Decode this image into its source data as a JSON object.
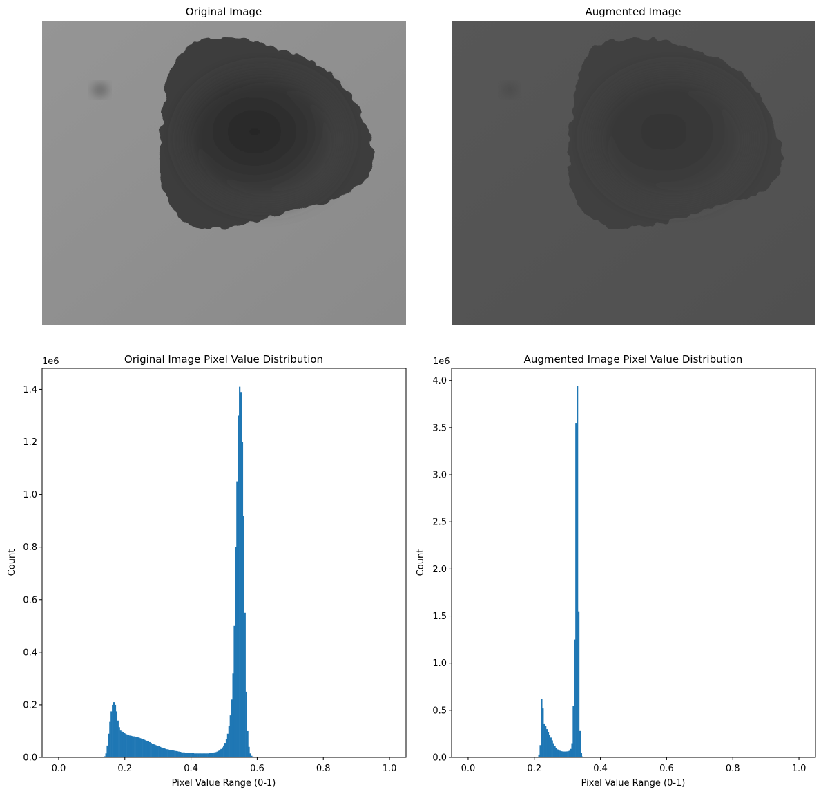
{
  "images": [
    {
      "title": "Original Image",
      "tone": "original",
      "background": "#8f8f8f"
    },
    {
      "title": "Augmented Image",
      "tone": "augmented",
      "background": "#545454"
    }
  ],
  "chart_data": [
    {
      "type": "bar",
      "title": "Original Image Pixel Value Distribution",
      "xlabel": "Pixel Value Range (0-1)",
      "ylabel": "Count",
      "scale_label": "1e6",
      "xlim": [
        -0.05,
        1.05
      ],
      "ylim": [
        0,
        1.48
      ],
      "xticks": [
        "0.0",
        "0.2",
        "0.4",
        "0.6",
        "0.8",
        "1.0"
      ],
      "xtick_values": [
        0,
        0.2,
        0.4,
        0.6,
        0.8,
        1.0
      ],
      "yticks": [
        "0.0",
        "0.2",
        "0.4",
        "0.6",
        "0.8",
        "1.0",
        "1.2",
        "1.4"
      ],
      "ytick_values": [
        0,
        0.2,
        0.4,
        0.6,
        0.8,
        1.0,
        1.2,
        1.4
      ],
      "color": "#1f77b4",
      "bin_width": 0.00392,
      "bins": [
        [
          0.137,
          0.004
        ],
        [
          0.141,
          0.015
        ],
        [
          0.145,
          0.045
        ],
        [
          0.149,
          0.09
        ],
        [
          0.153,
          0.135
        ],
        [
          0.157,
          0.175
        ],
        [
          0.161,
          0.2
        ],
        [
          0.165,
          0.21
        ],
        [
          0.169,
          0.2
        ],
        [
          0.173,
          0.175
        ],
        [
          0.177,
          0.14
        ],
        [
          0.181,
          0.115
        ],
        [
          0.185,
          0.102
        ],
        [
          0.189,
          0.098
        ],
        [
          0.193,
          0.095
        ],
        [
          0.197,
          0.092
        ],
        [
          0.201,
          0.089
        ],
        [
          0.205,
          0.087
        ],
        [
          0.209,
          0.085
        ],
        [
          0.213,
          0.083
        ],
        [
          0.217,
          0.082
        ],
        [
          0.221,
          0.081
        ],
        [
          0.225,
          0.08
        ],
        [
          0.229,
          0.079
        ],
        [
          0.233,
          0.078
        ],
        [
          0.237,
          0.077
        ],
        [
          0.241,
          0.075
        ],
        [
          0.245,
          0.073
        ],
        [
          0.249,
          0.071
        ],
        [
          0.253,
          0.069
        ],
        [
          0.257,
          0.067
        ],
        [
          0.261,
          0.065
        ],
        [
          0.265,
          0.063
        ],
        [
          0.269,
          0.061
        ],
        [
          0.273,
          0.058
        ],
        [
          0.277,
          0.055
        ],
        [
          0.281,
          0.052
        ],
        [
          0.285,
          0.05
        ],
        [
          0.289,
          0.048
        ],
        [
          0.293,
          0.046
        ],
        [
          0.297,
          0.044
        ],
        [
          0.301,
          0.042
        ],
        [
          0.305,
          0.04
        ],
        [
          0.309,
          0.038
        ],
        [
          0.313,
          0.036
        ],
        [
          0.317,
          0.034
        ],
        [
          0.321,
          0.033
        ],
        [
          0.325,
          0.031
        ],
        [
          0.329,
          0.03
        ],
        [
          0.333,
          0.029
        ],
        [
          0.337,
          0.028
        ],
        [
          0.341,
          0.027
        ],
        [
          0.345,
          0.026
        ],
        [
          0.349,
          0.025
        ],
        [
          0.353,
          0.024
        ],
        [
          0.357,
          0.023
        ],
        [
          0.361,
          0.022
        ],
        [
          0.365,
          0.021
        ],
        [
          0.369,
          0.02
        ],
        [
          0.373,
          0.019
        ],
        [
          0.377,
          0.019
        ],
        [
          0.381,
          0.018
        ],
        [
          0.385,
          0.018
        ],
        [
          0.389,
          0.017
        ],
        [
          0.393,
          0.017
        ],
        [
          0.397,
          0.016
        ],
        [
          0.401,
          0.016
        ],
        [
          0.405,
          0.016
        ],
        [
          0.409,
          0.015
        ],
        [
          0.413,
          0.015
        ],
        [
          0.417,
          0.015
        ],
        [
          0.421,
          0.015
        ],
        [
          0.425,
          0.015
        ],
        [
          0.429,
          0.015
        ],
        [
          0.433,
          0.015
        ],
        [
          0.437,
          0.015
        ],
        [
          0.441,
          0.015
        ],
        [
          0.445,
          0.015
        ],
        [
          0.449,
          0.015
        ],
        [
          0.453,
          0.016
        ],
        [
          0.457,
          0.016
        ],
        [
          0.461,
          0.017
        ],
        [
          0.465,
          0.018
        ],
        [
          0.469,
          0.019
        ],
        [
          0.473,
          0.02
        ],
        [
          0.477,
          0.022
        ],
        [
          0.481,
          0.025
        ],
        [
          0.485,
          0.028
        ],
        [
          0.489,
          0.032
        ],
        [
          0.493,
          0.038
        ],
        [
          0.497,
          0.045
        ],
        [
          0.501,
          0.055
        ],
        [
          0.505,
          0.07
        ],
        [
          0.509,
          0.09
        ],
        [
          0.513,
          0.12
        ],
        [
          0.517,
          0.16
        ],
        [
          0.521,
          0.22
        ],
        [
          0.525,
          0.32
        ],
        [
          0.529,
          0.5
        ],
        [
          0.533,
          0.8
        ],
        [
          0.537,
          1.05
        ],
        [
          0.541,
          1.3
        ],
        [
          0.545,
          1.41
        ],
        [
          0.549,
          1.39
        ],
        [
          0.553,
          1.2
        ],
        [
          0.557,
          0.92
        ],
        [
          0.561,
          0.55
        ],
        [
          0.565,
          0.25
        ],
        [
          0.569,
          0.1
        ],
        [
          0.573,
          0.04
        ],
        [
          0.577,
          0.015
        ],
        [
          0.581,
          0.006
        ],
        [
          0.585,
          0.003
        ]
      ]
    },
    {
      "type": "bar",
      "title": "Augmented Image Pixel Value Distribution",
      "xlabel": "Pixel Value Range (0-1)",
      "ylabel": "Count",
      "scale_label": "1e6",
      "xlim": [
        -0.05,
        1.05
      ],
      "ylim": [
        0,
        4.13
      ],
      "xticks": [
        "0.0",
        "0.2",
        "0.4",
        "0.6",
        "0.8",
        "1.0"
      ],
      "xtick_values": [
        0,
        0.2,
        0.4,
        0.6,
        0.8,
        1.0
      ],
      "yticks": [
        "0.0",
        "0.5",
        "1.0",
        "1.5",
        "2.0",
        "2.5",
        "3.0",
        "3.5",
        "4.0"
      ],
      "ytick_values": [
        0,
        0.5,
        1.0,
        1.5,
        2.0,
        2.5,
        3.0,
        3.5,
        4.0
      ],
      "color": "#1f77b4",
      "bin_width": 0.00392,
      "bins": [
        [
          0.212,
          0.03
        ],
        [
          0.216,
          0.13
        ],
        [
          0.22,
          0.62
        ],
        [
          0.224,
          0.52
        ],
        [
          0.228,
          0.36
        ],
        [
          0.232,
          0.33
        ],
        [
          0.236,
          0.3
        ],
        [
          0.24,
          0.27
        ],
        [
          0.244,
          0.24
        ],
        [
          0.248,
          0.21
        ],
        [
          0.252,
          0.18
        ],
        [
          0.256,
          0.15
        ],
        [
          0.26,
          0.12
        ],
        [
          0.264,
          0.1
        ],
        [
          0.268,
          0.085
        ],
        [
          0.272,
          0.075
        ],
        [
          0.276,
          0.07
        ],
        [
          0.28,
          0.065
        ],
        [
          0.284,
          0.063
        ],
        [
          0.288,
          0.062
        ],
        [
          0.292,
          0.062
        ],
        [
          0.296,
          0.063
        ],
        [
          0.3,
          0.065
        ],
        [
          0.304,
          0.07
        ],
        [
          0.308,
          0.09
        ],
        [
          0.312,
          0.15
        ],
        [
          0.316,
          0.55
        ],
        [
          0.32,
          1.25
        ],
        [
          0.324,
          3.55
        ],
        [
          0.328,
          3.94
        ],
        [
          0.332,
          1.55
        ],
        [
          0.336,
          0.28
        ],
        [
          0.34,
          0.05
        ],
        [
          0.344,
          0.01
        ]
      ]
    }
  ]
}
